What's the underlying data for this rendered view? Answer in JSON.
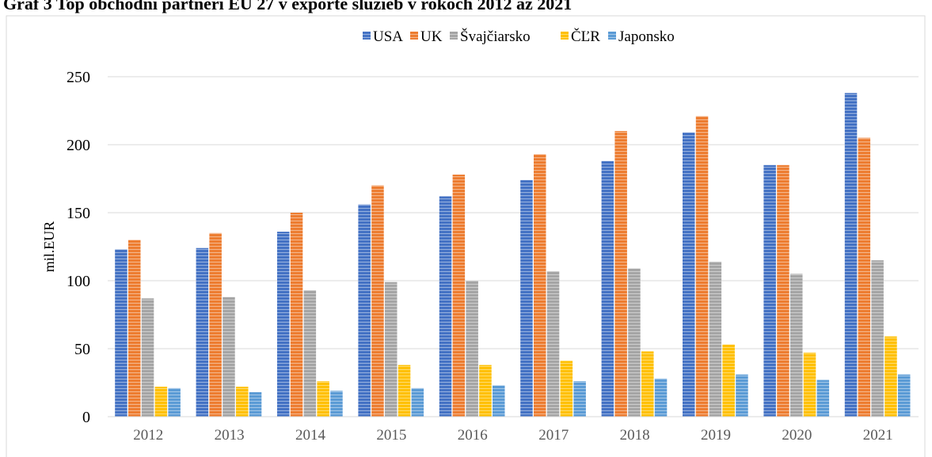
{
  "chart_data": {
    "type": "bar",
    "title": "Graf 3 Top obchodní partneri EÚ 27 v exporte služieb v rokoch 2012 až 2021",
    "y_label": "mil.EUR",
    "categories": [
      "2012",
      "2013",
      "2014",
      "2015",
      "2016",
      "2017",
      "2018",
      "2019",
      "2020",
      "2021"
    ],
    "series": [
      {
        "name": "USA",
        "color": "#4472c4",
        "values": [
          123,
          124,
          136,
          156,
          162,
          174,
          188,
          209,
          185,
          238
        ]
      },
      {
        "name": "UK",
        "color": "#ed7d31",
        "values": [
          130,
          135,
          150,
          170,
          178,
          193,
          210,
          221,
          185,
          205
        ]
      },
      {
        "name": "Švajčiarsko",
        "color": "#a5a5a5",
        "values": [
          87,
          88,
          93,
          99,
          100,
          107,
          109,
          114,
          105,
          115
        ]
      },
      {
        "name": "ČĽR",
        "color": "#ffc000",
        "values": [
          22,
          22,
          26,
          38,
          38,
          41,
          48,
          53,
          47,
          59
        ]
      },
      {
        "name": "Japonsko",
        "color": "#5b9bd5",
        "values": [
          21,
          18,
          19,
          21,
          23,
          26,
          28,
          31,
          27,
          31
        ]
      }
    ],
    "ylim": [
      0,
      250
    ],
    "yticks": [
      0,
      50,
      100,
      150,
      200,
      250
    ],
    "grid": true,
    "legend": "top"
  }
}
